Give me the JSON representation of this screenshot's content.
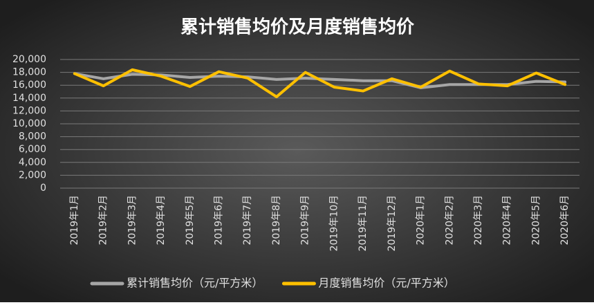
{
  "chart_data": {
    "type": "line",
    "title": "累计销售均价及月度销售均价",
    "categories": [
      "2019年1月",
      "2019年2月",
      "2019年3月",
      "2019年4月",
      "2019年5月",
      "2019年6月",
      "2019年7月",
      "2019年8月",
      "2019年9月",
      "2019年10月",
      "2019年11月",
      "2019年12月",
      "2020年1月",
      "2020年2月",
      "2020年3月",
      "2020年4月",
      "2020年5月",
      "2020年6月"
    ],
    "series": [
      {
        "name": "累计销售均价（元/平方米）",
        "color": "#a6a6a6",
        "values": [
          17800,
          17000,
          17700,
          17600,
          17200,
          17400,
          17300,
          16900,
          17100,
          16900,
          16700,
          16700,
          15600,
          16100,
          16100,
          16100,
          16600,
          16500
        ]
      },
      {
        "name": "月度销售均价（元/平方米）",
        "color": "#ffc000",
        "values": [
          17800,
          15900,
          18400,
          17400,
          15800,
          18100,
          17100,
          14200,
          18000,
          15700,
          15100,
          17000,
          15700,
          18200,
          16200,
          15900,
          17900,
          16100
        ]
      }
    ],
    "ylim": [
      0,
      20000
    ],
    "yticks": [
      0,
      {
        "value": 2000,
        "label": "2,000"
      },
      {
        "value": 4000,
        "label": "4,000"
      },
      {
        "value": 6000,
        "label": "6,000"
      },
      {
        "value": 8000,
        "label": "8,000"
      },
      {
        "value": 10000,
        "label": "10,000"
      },
      {
        "value": 12000,
        "label": "12,000"
      },
      {
        "value": 14000,
        "label": "14,000"
      },
      {
        "value": 16000,
        "label": "16,000"
      },
      {
        "value": 18000,
        "label": "18,000"
      },
      {
        "value": 20000,
        "label": "20,000"
      }
    ],
    "grid": true,
    "legend": "bottom"
  }
}
